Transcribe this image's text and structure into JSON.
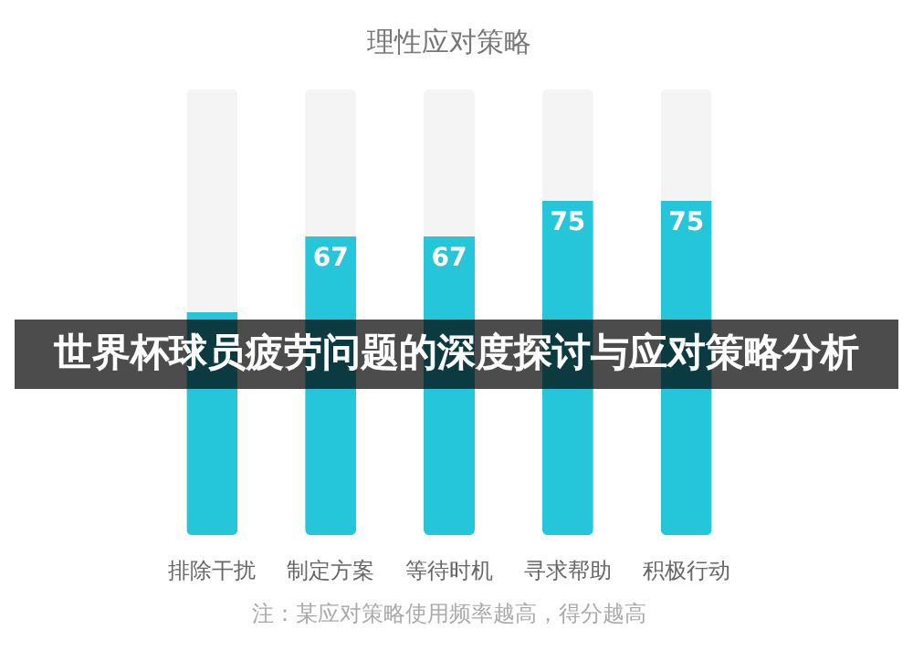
{
  "chart_data": {
    "type": "bar",
    "title": "理性应对策略",
    "categories": [
      "排除干扰",
      "制定方案",
      "等待时机",
      "寻求帮助",
      "积极行动"
    ],
    "stacked": true,
    "ylim": [
      0,
      100
    ],
    "tick_labels": "x",
    "grid": false,
    "series": [
      {
        "color": "#26c6da",
        "values": [
          50,
          67,
          67,
          75,
          75
        ],
        "value_labels": [
          null,
          "67",
          "67",
          "75",
          "75"
        ]
      },
      {
        "color": "#f4f4f4",
        "values": [
          50,
          33,
          33,
          25,
          25
        ]
      }
    ],
    "annotations": [
      "世界杯球员疲劳问题的深度探讨与应对策略分析",
      "注：某应对策略使用频率越高，得分越高"
    ]
  }
}
